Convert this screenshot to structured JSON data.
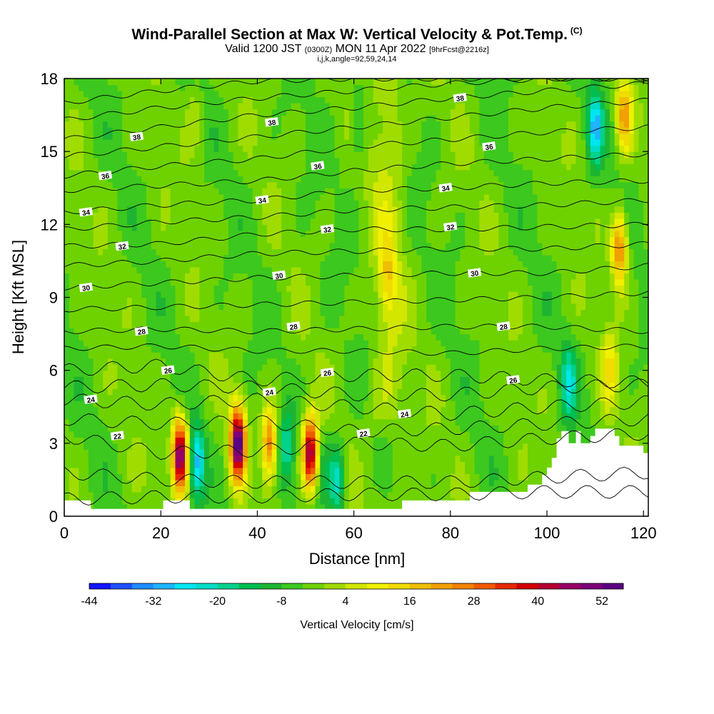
{
  "title": {
    "main": "Wind-Parallel Section at Max W: Vertical Velocity & Pot.Temp.",
    "copyright": "(C)",
    "valid_prefix": "Valid 1200 JST",
    "utc": "(0300Z)",
    "valid_date": "MON 11 Apr 2022",
    "forecast": "[9hrFcst@2216z]",
    "indices": "i,j,k,angle=92,59,24,14"
  },
  "colors": {
    "palette": [
      "#1414ff",
      "#1e50ff",
      "#1e8cff",
      "#1eb4ff",
      "#00e6f0",
      "#00dcc8",
      "#00d28c",
      "#00be50",
      "#1eb432",
      "#3cc81e",
      "#6ed200",
      "#a0dc00",
      "#d2e600",
      "#f0f000",
      "#f0dc00",
      "#f0be00",
      "#f0a000",
      "#f08200",
      "#f05a00",
      "#e62800",
      "#d20000",
      "#b40032",
      "#960064",
      "#7d0078",
      "#5a0082"
    ],
    "background": "#ffffff"
  },
  "chart_data": {
    "type": "heatmap",
    "xlabel": "Distance [nm]",
    "ylabel": "Height [Kft MSL]",
    "xlim": [
      0,
      121
    ],
    "ylim": [
      0,
      18
    ],
    "x_ticks": [
      0,
      20,
      40,
      60,
      80,
      100,
      120
    ],
    "y_ticks": [
      0,
      3,
      6,
      9,
      12,
      15,
      18
    ],
    "colorbar": {
      "label": "Vertical Velocity [cm/s]",
      "tick_labels": [
        "-44",
        "-32",
        "-20",
        "-8",
        "4",
        "16",
        "28",
        "40",
        "52"
      ]
    },
    "velocity_features": [
      {
        "x": 24,
        "y": 2.5,
        "w": 55
      },
      {
        "x": 27.5,
        "y": 2.2,
        "w": -25
      },
      {
        "x": 36,
        "y": 3.0,
        "w": 58
      },
      {
        "x": 39,
        "y": 2.5,
        "w": -5
      },
      {
        "x": 42.5,
        "y": 3.0,
        "w": 30
      },
      {
        "x": 46,
        "y": 2.8,
        "w": -15
      },
      {
        "x": 51,
        "y": 2.6,
        "w": 50
      },
      {
        "x": 53.5,
        "y": 2.0,
        "w": -8
      },
      {
        "x": 56.5,
        "y": 1.5,
        "w": -20
      },
      {
        "x": 104.5,
        "y": 5.5,
        "w": -18
      },
      {
        "x": 110,
        "y": 16.0,
        "w": -25
      },
      {
        "x": 115,
        "y": 11.0,
        "w": 30
      },
      {
        "x": 116,
        "y": 16.5,
        "w": 25
      },
      {
        "x": 113,
        "y": 6.0,
        "w": 15
      },
      {
        "x": 67,
        "y": 10.0,
        "w": 12
      },
      {
        "x": 27,
        "y": 16.5,
        "w": 6
      },
      {
        "x": 61,
        "y": 16.0,
        "w": -10
      }
    ],
    "theta_isentropes": [
      {
        "theta": 20,
        "heights": [
          0.7,
          0.8,
          0.8,
          0.9,
          0.9,
          1.0,
          1.0
        ]
      },
      {
        "theta": 21,
        "heights": [
          1.8,
          1.5,
          1.4,
          1.4,
          1.4,
          1.6,
          1.8
        ]
      },
      {
        "theta": 22,
        "heights": [
          3.3,
          2.6,
          2.7,
          3.0,
          2.9,
          3.2,
          3.4
        ]
      },
      {
        "theta": 23,
        "heights": [
          4.0,
          3.8,
          3.9,
          3.5,
          3.6,
          3.8,
          4.0
        ]
      },
      {
        "theta": 24,
        "heights": [
          4.8,
          4.6,
          4.8,
          4.5,
          4.2,
          4.5,
          4.7
        ]
      },
      {
        "theta": 25,
        "heights": [
          5.3,
          5.4,
          5.3,
          5.0,
          5.0,
          5.3,
          5.4
        ]
      },
      {
        "theta": 26,
        "heights": [
          6.0,
          6.2,
          5.6,
          5.8,
          5.8,
          5.6,
          5.5
        ]
      },
      {
        "theta": 27,
        "heights": [
          6.9,
          7.0,
          6.8,
          6.8,
          6.7,
          6.9,
          7.0
        ]
      },
      {
        "theta": 28,
        "heights": [
          7.6,
          7.7,
          7.6,
          7.7,
          7.8,
          7.8,
          7.6
        ]
      },
      {
        "theta": 29,
        "heights": [
          8.5,
          8.6,
          8.7,
          8.8,
          8.9,
          9.0,
          9.2
        ]
      },
      {
        "theta": 30,
        "heights": [
          9.4,
          9.6,
          9.8,
          9.9,
          10.0,
          10.0,
          10.3
        ]
      },
      {
        "theta": 31,
        "heights": [
          10.3,
          10.5,
          10.8,
          10.9,
          11.0,
          11.0,
          11.2
        ]
      },
      {
        "theta": 32,
        "heights": [
          11.1,
          11.2,
          11.6,
          11.8,
          11.8,
          11.9,
          12.0
        ]
      },
      {
        "theta": 33,
        "heights": [
          11.8,
          12.1,
          12.3,
          12.6,
          12.7,
          12.8,
          13.0
        ]
      },
      {
        "theta": 34,
        "heights": [
          12.5,
          12.8,
          13.0,
          13.4,
          13.5,
          13.7,
          13.8
        ]
      },
      {
        "theta": 35,
        "heights": [
          13.4,
          13.6,
          13.8,
          14.2,
          14.5,
          14.7,
          14.9
        ]
      },
      {
        "theta": 36,
        "heights": [
          14.0,
          14.4,
          14.7,
          15.2,
          15.5,
          15.8,
          16.0
        ]
      },
      {
        "theta": 37,
        "heights": [
          14.8,
          15.2,
          15.6,
          16.0,
          16.4,
          16.8,
          17.1
        ]
      },
      {
        "theta": 38,
        "heights": [
          15.5,
          16.0,
          16.5,
          16.8,
          17.2,
          17.5,
          17.8
        ]
      },
      {
        "theta": 39,
        "heights": [
          16.3,
          16.8,
          17.2,
          17.5,
          17.8,
          18.0,
          18.0
        ]
      },
      {
        "theta": 40,
        "heights": [
          17.0,
          17.5,
          17.9,
          18.0,
          18.0,
          18.0,
          18.0
        ]
      }
    ],
    "isentrope_x": [
      0,
      20,
      40,
      60,
      80,
      100,
      121
    ],
    "contour_labels": [
      {
        "text": "38",
        "x": 15,
        "y": 15.6
      },
      {
        "text": "38",
        "x": 43,
        "y": 16.2
      },
      {
        "text": "38",
        "x": 82,
        "y": 17.2
      },
      {
        "text": "36",
        "x": 8.5,
        "y": 14.0
      },
      {
        "text": "36",
        "x": 52.5,
        "y": 14.4
      },
      {
        "text": "36",
        "x": 88,
        "y": 15.2
      },
      {
        "text": "34",
        "x": 4.5,
        "y": 12.5
      },
      {
        "text": "34",
        "x": 41,
        "y": 13.0
      },
      {
        "text": "34",
        "x": 79,
        "y": 13.5
      },
      {
        "text": "32",
        "x": 12,
        "y": 11.1
      },
      {
        "text": "32",
        "x": 54.5,
        "y": 11.8
      },
      {
        "text": "32",
        "x": 80,
        "y": 11.9
      },
      {
        "text": "30",
        "x": 4.5,
        "y": 9.4
      },
      {
        "text": "30",
        "x": 44.5,
        "y": 9.9
      },
      {
        "text": "30",
        "x": 85,
        "y": 10.0
      },
      {
        "text": "28",
        "x": 16,
        "y": 7.6
      },
      {
        "text": "28",
        "x": 47.5,
        "y": 7.8
      },
      {
        "text": "28",
        "x": 91,
        "y": 7.8
      },
      {
        "text": "26",
        "x": 21.5,
        "y": 6.0
      },
      {
        "text": "26",
        "x": 54.5,
        "y": 5.9
      },
      {
        "text": "26",
        "x": 93,
        "y": 5.6
      },
      {
        "text": "24",
        "x": 5.5,
        "y": 4.8
      },
      {
        "text": "24",
        "x": 42.5,
        "y": 5.1
      },
      {
        "text": "24",
        "x": 70.5,
        "y": 4.2
      },
      {
        "text": "22",
        "x": 11,
        "y": 3.3
      },
      {
        "text": "22",
        "x": 62,
        "y": 3.4
      }
    ],
    "terrain": [
      {
        "x": 0,
        "h": 0.65
      },
      {
        "x": 5.5,
        "h": 0.65
      },
      {
        "x": 5.5,
        "h": 0.3
      },
      {
        "x": 20.5,
        "h": 0.3
      },
      {
        "x": 20.5,
        "h": 0.65
      },
      {
        "x": 26,
        "h": 0.65
      },
      {
        "x": 26,
        "h": 0.3
      },
      {
        "x": 70,
        "h": 0.3
      },
      {
        "x": 70,
        "h": 0.65
      },
      {
        "x": 84,
        "h": 0.65
      },
      {
        "x": 84,
        "h": 1.0
      },
      {
        "x": 96,
        "h": 1.0
      },
      {
        "x": 96,
        "h": 1.3
      },
      {
        "x": 99,
        "h": 1.3
      },
      {
        "x": 99,
        "h": 1.7
      },
      {
        "x": 100,
        "h": 1.7
      },
      {
        "x": 100,
        "h": 2.0
      },
      {
        "x": 101,
        "h": 2.0
      },
      {
        "x": 101,
        "h": 2.4
      },
      {
        "x": 102,
        "h": 2.4
      },
      {
        "x": 102,
        "h": 3.2
      },
      {
        "x": 103,
        "h": 3.2
      },
      {
        "x": 103,
        "h": 3.5
      },
      {
        "x": 104.5,
        "h": 3.5
      },
      {
        "x": 104.5,
        "h": 3.0
      },
      {
        "x": 106,
        "h": 3.0
      },
      {
        "x": 106,
        "h": 3.5
      },
      {
        "x": 107,
        "h": 3.5
      },
      {
        "x": 107,
        "h": 3.0
      },
      {
        "x": 109,
        "h": 3.0
      },
      {
        "x": 109,
        "h": 3.3
      },
      {
        "x": 110,
        "h": 3.3
      },
      {
        "x": 110,
        "h": 3.6
      },
      {
        "x": 114,
        "h": 3.6
      },
      {
        "x": 114,
        "h": 3.3
      },
      {
        "x": 115,
        "h": 3.3
      },
      {
        "x": 115,
        "h": 2.9
      },
      {
        "x": 120,
        "h": 2.9
      },
      {
        "x": 120,
        "h": 2.6
      },
      {
        "x": 121,
        "h": 2.6
      }
    ]
  }
}
